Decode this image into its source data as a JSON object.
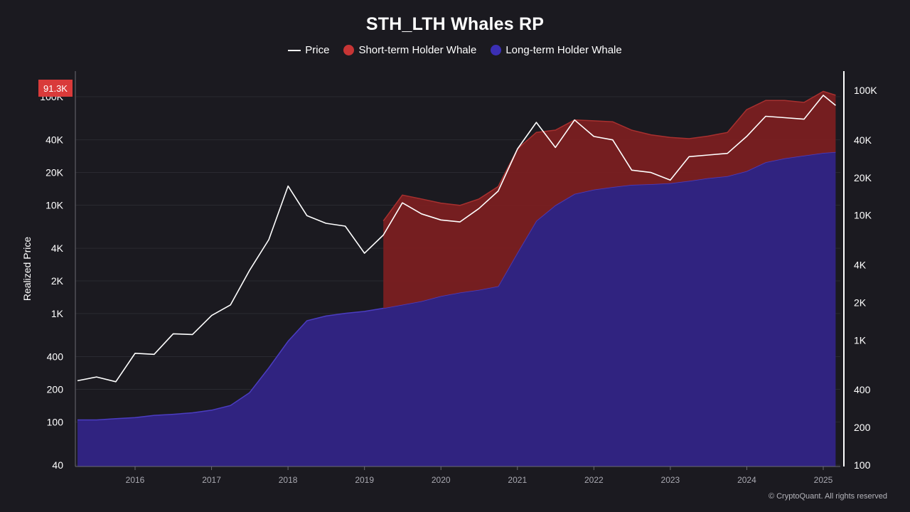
{
  "chart_data": {
    "type": "area",
    "title": "STH_LTH Whales RP",
    "ylabel": "Realized Price",
    "y_scale": "log",
    "x": [
      "2015-04",
      "2015-07",
      "2015-10",
      "2016-01",
      "2016-04",
      "2016-07",
      "2016-10",
      "2017-01",
      "2017-04",
      "2017-07",
      "2017-10",
      "2018-01",
      "2018-04",
      "2018-07",
      "2018-10",
      "2019-01",
      "2019-04",
      "2019-07",
      "2019-10",
      "2020-01",
      "2020-04",
      "2020-07",
      "2020-10",
      "2021-01",
      "2021-04",
      "2021-07",
      "2021-10",
      "2022-01",
      "2022-04",
      "2022-07",
      "2022-10",
      "2023-01",
      "2023-04",
      "2023-07",
      "2023-10",
      "2024-01",
      "2024-04",
      "2024-07",
      "2024-10",
      "2025-01",
      "2025-03"
    ],
    "series": [
      {
        "name": "Price",
        "axis": "left",
        "values": [
          240,
          260,
          235,
          430,
          420,
          650,
          640,
          960,
          1200,
          2500,
          4800,
          15000,
          8000,
          6800,
          6400,
          3600,
          5300,
          10500,
          8300,
          7300,
          7000,
          9300,
          13500,
          33000,
          58000,
          34000,
          61000,
          43000,
          40000,
          21000,
          20000,
          17000,
          28000,
          29000,
          30000,
          43000,
          66000,
          64000,
          62000,
          103000,
          83000
        ]
      },
      {
        "name": "Short-term Holder Whale",
        "axis": "right",
        "values": [
          null,
          null,
          null,
          null,
          null,
          null,
          null,
          null,
          null,
          null,
          null,
          null,
          null,
          null,
          null,
          null,
          9000,
          14500,
          13500,
          12500,
          12000,
          13500,
          17000,
          34000,
          46000,
          48000,
          58000,
          57000,
          56000,
          48000,
          44000,
          42000,
          41000,
          43000,
          46000,
          70000,
          83000,
          83000,
          80000,
          98000,
          91300
        ]
      },
      {
        "name": "Long-term Holder Whale",
        "axis": "right",
        "values": [
          230,
          230,
          235,
          240,
          250,
          255,
          262,
          275,
          300,
          380,
          600,
          980,
          1430,
          1560,
          1640,
          1700,
          1800,
          1920,
          2050,
          2250,
          2400,
          2520,
          2700,
          5000,
          9000,
          12000,
          14800,
          16000,
          16800,
          17500,
          17700,
          18000,
          18800,
          19800,
          20500,
          22500,
          26500,
          28500,
          30000,
          31500,
          32000
        ]
      }
    ],
    "axes": {
      "left": {
        "range": [
          40,
          100000
        ],
        "ticks": [
          "40",
          "100",
          "200",
          "400",
          "1K",
          "2K",
          "4K",
          "10K",
          "20K",
          "40K",
          "100K"
        ],
        "tick_values": [
          40,
          100,
          200,
          400,
          1000,
          2000,
          4000,
          10000,
          20000,
          40000,
          100000
        ]
      },
      "right": {
        "range": [
          100,
          120000
        ],
        "ticks": [
          "100",
          "200",
          "400",
          "1K",
          "2K",
          "4K",
          "10K",
          "20K",
          "40K",
          "100K"
        ],
        "tick_values": [
          100,
          200,
          400,
          1000,
          2000,
          4000,
          10000,
          20000,
          40000,
          100000
        ]
      },
      "x": {
        "ticks": [
          "2016",
          "2017",
          "2018",
          "2019",
          "2020",
          "2021",
          "2022",
          "2023",
          "2024",
          "2025"
        ]
      }
    },
    "grid": true,
    "legend_position": "top-center",
    "last_value_label": "91.3K"
  },
  "legend": {
    "price_label": "Price",
    "sth_label": "Short-term Holder Whale",
    "lth_label": "Long-term Holder Whale"
  },
  "colors": {
    "background": "#1b1a20",
    "price": "#ffffff",
    "sth_fill": "#7a1f21",
    "sth_edge": "#a8302f",
    "sth_dot": "#c73535",
    "lth_fill": "#302380",
    "lth_edge": "#4b3dc2",
    "lth_dot": "#3b2fb4",
    "badge": "#d93a3a",
    "grid": "#2a2a31",
    "axis_text": "#ffffff",
    "x_text": "#a9a9b1"
  },
  "footer": {
    "copyright": "© CryptoQuant. All rights reserved"
  }
}
